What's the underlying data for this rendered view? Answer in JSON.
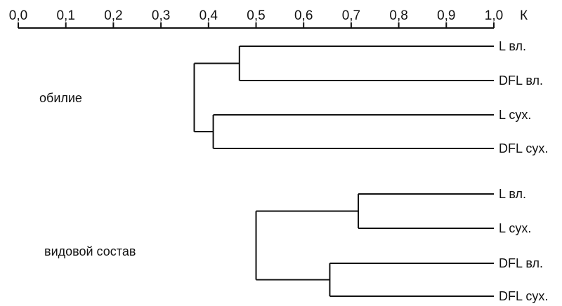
{
  "axis": {
    "ticks": [
      0.0,
      0.1,
      0.2,
      0.3,
      0.4,
      0.5,
      0.6,
      0.7,
      0.8,
      0.9,
      1.0
    ],
    "tick_labels": [
      "0,0",
      "0,1",
      "0,2",
      "0,3",
      "0,4",
      "0,5",
      "0,6",
      "0,7",
      "0,8",
      "0,9",
      "1,0"
    ],
    "unit": "К"
  },
  "groups": [
    {
      "label": "обилие",
      "leaves": [
        "L вл.",
        "DFL вл.",
        "L сух.",
        "DFL сух."
      ],
      "merges": [
        {
          "a": 0,
          "b": 1,
          "value": 0.465
        },
        {
          "a": 2,
          "b": 3,
          "value": 0.41
        },
        {
          "a": "m0",
          "b": "m1",
          "value": 0.37
        }
      ]
    },
    {
      "label": "видовой состав",
      "leaves": [
        "L вл.",
        "L сух.",
        "DFL вл.",
        "DFL сух."
      ],
      "merges": [
        {
          "a": 0,
          "b": 1,
          "value": 0.715
        },
        {
          "a": 2,
          "b": 3,
          "value": 0.655
        },
        {
          "a": "m0",
          "b": "m1",
          "value": 0.5
        }
      ]
    }
  ],
  "colors": {
    "ink": "#111111",
    "background": "#ffffff"
  }
}
